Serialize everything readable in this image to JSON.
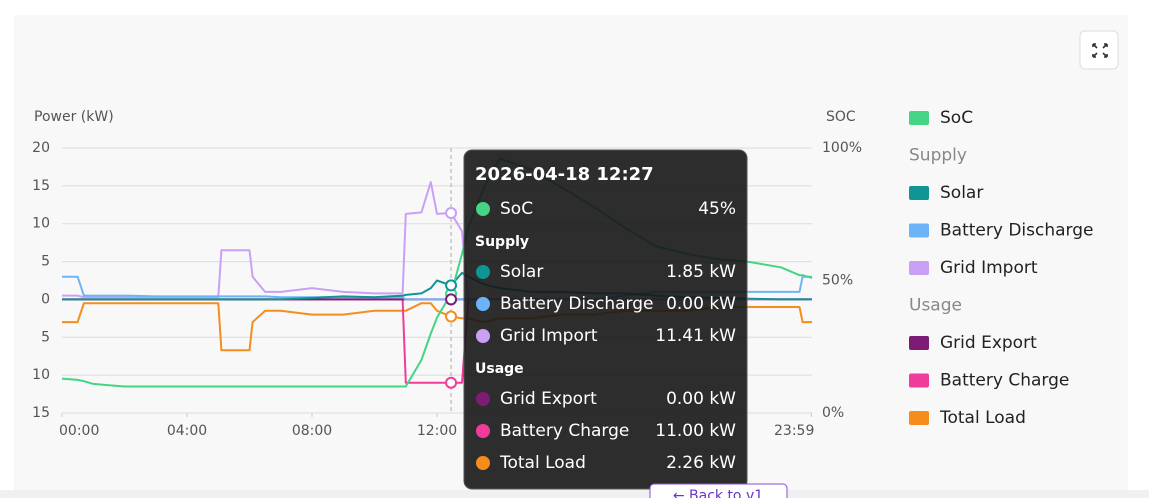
{
  "chart_data": {
    "type": "line",
    "y_label": "Power (kW)",
    "y2_label": "SOC",
    "xticks": [
      {
        "value": 0,
        "label": "00:00"
      },
      {
        "value": 4,
        "label": "04:00"
      },
      {
        "value": 8,
        "label": "08:00"
      },
      {
        "value": 12,
        "label": "12:00"
      },
      {
        "value": 23.98,
        "label": "23:59"
      }
    ],
    "xlim": [
      0,
      24
    ],
    "ylim": [
      -15,
      20
    ],
    "yticks": [
      20,
      15,
      10,
      5,
      0,
      {
        "value": -5,
        "label": "5"
      },
      {
        "value": -10,
        "label": "10"
      },
      {
        "value": -15,
        "label": "15"
      }
    ],
    "y2lim": [
      0,
      100
    ],
    "y2ticks": [
      {
        "value": 0,
        "label": "0%"
      },
      {
        "value": 50,
        "label": "50%"
      },
      {
        "value": 100,
        "label": "100%"
      }
    ],
    "grid": true,
    "groups": [
      "Supply",
      "Usage"
    ],
    "x": [
      0,
      0.5,
      0.7,
      1,
      1.5,
      2,
      3,
      4,
      5,
      5.1,
      6,
      6.1,
      6.5,
      7,
      8,
      9,
      10,
      10.9,
      11,
      11.5,
      11.8,
      12,
      12.45,
      12.8,
      13,
      13.5,
      14,
      15,
      16,
      17,
      18,
      19,
      20,
      21,
      22,
      23,
      23.6,
      23.7,
      24
    ],
    "series": [
      {
        "name": "SoC",
        "color": "#45d483",
        "axis": "y2",
        "values": [
          13,
          12.5,
          12,
          11,
          10.5,
          10,
          10,
          10,
          10,
          10,
          10,
          10,
          10,
          10,
          10,
          10,
          10,
          10,
          10,
          20,
          30,
          36,
          45,
          60,
          70,
          85,
          96,
          92,
          85,
          78,
          70,
          63,
          60,
          58,
          57,
          55,
          52,
          52,
          51
        ]
      },
      {
        "name": "Solar",
        "color": "#0e9594",
        "group": 0,
        "values": [
          0,
          0,
          0,
          0,
          0,
          0,
          0,
          0,
          0,
          0,
          0,
          0,
          0,
          0,
          0.2,
          0.4,
          0.3,
          0.5,
          0.6,
          0.8,
          1.5,
          2.5,
          1.85,
          3.5,
          3,
          2,
          1.5,
          1,
          1,
          0.8,
          0.8,
          0.5,
          0.3,
          0.2,
          0.1,
          0,
          0,
          0,
          0
        ]
      },
      {
        "name": "Battery Discharge",
        "color": "#6cb4f7",
        "group": 0,
        "values": [
          3,
          3,
          0.5,
          0.5,
          0.5,
          0.5,
          0.4,
          0.4,
          0.4,
          0.4,
          0.4,
          0.4,
          0.4,
          0.3,
          0.3,
          0.3,
          0.3,
          0.3,
          0,
          0,
          0,
          0,
          0,
          0,
          0,
          0,
          0,
          0,
          0,
          0,
          0.5,
          1,
          1,
          1,
          1,
          1,
          1,
          3,
          3
        ]
      },
      {
        "name": "Grid Import",
        "color": "#c9a0f5",
        "group": 0,
        "values": [
          0.5,
          0.5,
          0.3,
          0.3,
          0.3,
          0.3,
          0.3,
          0.3,
          0.3,
          6.5,
          6.5,
          3,
          1,
          1,
          1.5,
          1,
          0.8,
          0.8,
          11.3,
          11.5,
          15.5,
          11.3,
          11.41,
          9,
          0,
          0,
          0,
          0,
          0,
          0,
          0,
          0,
          0,
          0,
          0,
          0,
          0,
          0,
          0
        ]
      },
      {
        "name": "Grid Export",
        "color": "#7d1c74",
        "group": 1,
        "below_axis": true,
        "values": [
          0,
          0,
          0,
          0,
          0,
          0,
          0,
          0,
          0,
          0,
          0,
          0,
          0,
          0,
          0,
          0,
          0,
          0,
          0,
          0,
          0,
          0,
          0,
          0,
          0,
          0,
          0,
          0,
          0,
          0,
          0,
          0,
          0,
          0,
          0,
          0,
          0,
          0,
          0
        ]
      },
      {
        "name": "Battery Charge",
        "color": "#ef3c9a",
        "group": 1,
        "below_axis": true,
        "values": [
          0,
          0,
          0,
          0,
          0,
          0,
          0,
          0,
          0,
          0,
          0,
          0,
          0,
          0,
          0,
          0,
          0,
          0,
          11,
          11,
          11,
          11,
          11,
          11,
          0,
          0,
          0,
          0,
          0,
          0,
          0,
          0,
          0,
          0,
          0,
          0,
          0,
          0,
          0
        ]
      },
      {
        "name": "Total Load",
        "color": "#f58d1c",
        "group": 1,
        "below_axis": true,
        "values": [
          3,
          3,
          0.5,
          0.5,
          0.5,
          0.5,
          0.5,
          0.5,
          0.5,
          6.7,
          6.7,
          3,
          1.5,
          1.5,
          2,
          2,
          1.5,
          1.5,
          1.5,
          0.5,
          0.5,
          1.5,
          2.26,
          2.5,
          2.5,
          3,
          2.5,
          2.5,
          2,
          2,
          1.5,
          1.5,
          1.5,
          1,
          1,
          1,
          1,
          3,
          3
        ]
      }
    ],
    "tooltip": {
      "title": "2026-04-18 12:27",
      "x": 12.45,
      "values": [
        45,
        1.85,
        0,
        11.41,
        0,
        11,
        2.26
      ],
      "value_labels": [
        "45%",
        "1.85 kW",
        "0.00 kW",
        "11.41 kW",
        "0.00 kW",
        "11.00 kW",
        "2.26 kW"
      ]
    }
  },
  "back_button": "← Back to v1"
}
